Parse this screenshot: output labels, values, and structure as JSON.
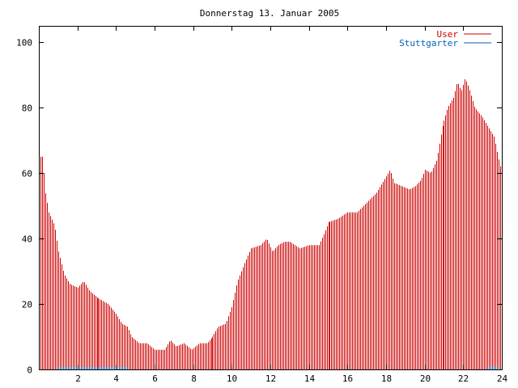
{
  "chart_data": {
    "type": "bar",
    "title": "Donnerstag 13. Januar 2005",
    "xlabel": "",
    "ylabel": "",
    "xlim": [
      0,
      24
    ],
    "ylim": [
      0,
      105
    ],
    "xticks": [
      2,
      4,
      6,
      8,
      10,
      12,
      14,
      16,
      18,
      20,
      22,
      24
    ],
    "yticks": [
      0,
      20,
      40,
      60,
      80,
      100
    ],
    "grid": false,
    "legend": "top-right",
    "series": [
      {
        "name": "User",
        "color": "#cc0000",
        "knots": [
          [
            0.0,
            65
          ],
          [
            0.2,
            65
          ],
          [
            0.3,
            55
          ],
          [
            0.5,
            48
          ],
          [
            0.8,
            44
          ],
          [
            1.0,
            36
          ],
          [
            1.3,
            29
          ],
          [
            1.6,
            26
          ],
          [
            2.0,
            25
          ],
          [
            2.3,
            27
          ],
          [
            2.6,
            24
          ],
          [
            3.0,
            22
          ],
          [
            3.3,
            21
          ],
          [
            3.6,
            20
          ],
          [
            4.0,
            17
          ],
          [
            4.3,
            14
          ],
          [
            4.6,
            13
          ],
          [
            4.8,
            10
          ],
          [
            5.2,
            8
          ],
          [
            5.6,
            8
          ],
          [
            5.8,
            7
          ],
          [
            6.0,
            6
          ],
          [
            6.5,
            6
          ],
          [
            6.8,
            9
          ],
          [
            7.1,
            7
          ],
          [
            7.5,
            8
          ],
          [
            7.9,
            6
          ],
          [
            8.3,
            8
          ],
          [
            8.7,
            8
          ],
          [
            9.0,
            10
          ],
          [
            9.3,
            13
          ],
          [
            9.7,
            14
          ],
          [
            10.0,
            19
          ],
          [
            10.3,
            27
          ],
          [
            10.7,
            33
          ],
          [
            11.0,
            37
          ],
          [
            11.5,
            38
          ],
          [
            11.8,
            40
          ],
          [
            12.1,
            36
          ],
          [
            12.4,
            38
          ],
          [
            12.7,
            39
          ],
          [
            13.0,
            39
          ],
          [
            13.5,
            37
          ],
          [
            14.0,
            38
          ],
          [
            14.5,
            38
          ],
          [
            14.8,
            42
          ],
          [
            15.0,
            45
          ],
          [
            15.5,
            46
          ],
          [
            16.0,
            48
          ],
          [
            16.5,
            48
          ],
          [
            17.0,
            51
          ],
          [
            17.5,
            54
          ],
          [
            18.0,
            59
          ],
          [
            18.2,
            61
          ],
          [
            18.4,
            57
          ],
          [
            18.8,
            56
          ],
          [
            19.2,
            55
          ],
          [
            19.5,
            56
          ],
          [
            19.8,
            58
          ],
          [
            20.0,
            61
          ],
          [
            20.3,
            60
          ],
          [
            20.6,
            64
          ],
          [
            20.9,
            74
          ],
          [
            21.2,
            80
          ],
          [
            21.5,
            83
          ],
          [
            21.7,
            88
          ],
          [
            21.9,
            85
          ],
          [
            22.1,
            89
          ],
          [
            22.3,
            86
          ],
          [
            22.6,
            80
          ],
          [
            23.0,
            77
          ],
          [
            23.3,
            74
          ],
          [
            23.6,
            71
          ],
          [
            23.8,
            65
          ],
          [
            24.0,
            60
          ]
        ]
      },
      {
        "name": "Stuttgarter",
        "color": "#0060b0",
        "knots": [
          [
            0.0,
            0
          ],
          [
            0.9,
            0
          ],
          [
            1.0,
            0.7
          ],
          [
            4.6,
            0.7
          ],
          [
            4.7,
            0
          ],
          [
            15.9,
            0
          ],
          [
            16.0,
            0.5
          ],
          [
            16.1,
            0
          ],
          [
            23.2,
            0
          ],
          [
            23.3,
            0.8
          ],
          [
            23.8,
            0.8
          ],
          [
            23.9,
            0
          ],
          [
            24.0,
            0
          ]
        ]
      }
    ]
  }
}
